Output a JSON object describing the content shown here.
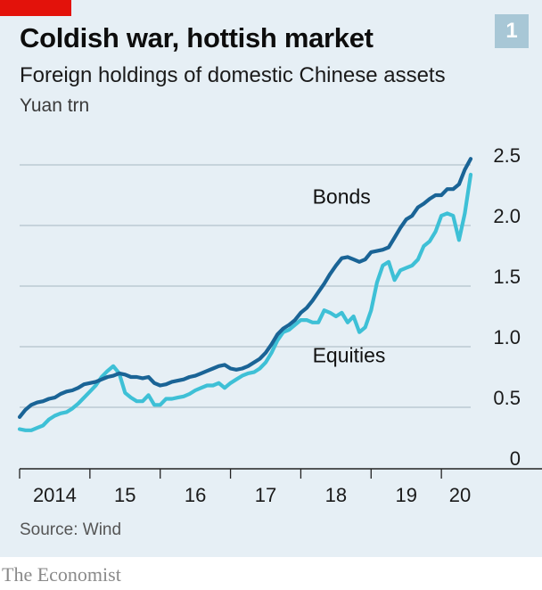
{
  "header": {
    "title": "Coldish war, hottish market",
    "badge": "1",
    "subtitle": "Foreign holdings of domestic Chinese assets",
    "unit": "Yuan trn"
  },
  "footer": {
    "source": "Source: Wind",
    "brand": "The Economist"
  },
  "colors": {
    "bonds": "#1a6496",
    "equities": "#3ec0d6",
    "accent": "#e3120b",
    "background": "#e6eff5"
  },
  "chart_data": {
    "type": "line",
    "title": "Coldish war, hottish market",
    "subtitle": "Foreign holdings of domestic Chinese assets",
    "ylabel": "Yuan trn",
    "ylim": [
      0,
      2.5
    ],
    "yticks": [
      0,
      0.5,
      1.0,
      1.5,
      2.0,
      2.5
    ],
    "ytick_labels": [
      "0",
      "0.5",
      "1.0",
      "1.5",
      "2.0",
      "2.5"
    ],
    "xlim": [
      "2014-01",
      "2020-06"
    ],
    "x_tick_labels": [
      "2014",
      "15",
      "16",
      "17",
      "18",
      "19",
      "20"
    ],
    "grid": true,
    "x": [
      "2014-01",
      "2014-02",
      "2014-03",
      "2014-04",
      "2014-05",
      "2014-06",
      "2014-07",
      "2014-08",
      "2014-09",
      "2014-10",
      "2014-11",
      "2014-12",
      "2015-01",
      "2015-02",
      "2015-03",
      "2015-04",
      "2015-05",
      "2015-06",
      "2015-07",
      "2015-08",
      "2015-09",
      "2015-10",
      "2015-11",
      "2015-12",
      "2016-01",
      "2016-02",
      "2016-03",
      "2016-04",
      "2016-05",
      "2016-06",
      "2016-07",
      "2016-08",
      "2016-09",
      "2016-10",
      "2016-11",
      "2016-12",
      "2017-01",
      "2017-02",
      "2017-03",
      "2017-04",
      "2017-05",
      "2017-06",
      "2017-07",
      "2017-08",
      "2017-09",
      "2017-10",
      "2017-11",
      "2017-12",
      "2018-01",
      "2018-02",
      "2018-03",
      "2018-04",
      "2018-05",
      "2018-06",
      "2018-07",
      "2018-08",
      "2018-09",
      "2018-10",
      "2018-11",
      "2018-12",
      "2019-01",
      "2019-02",
      "2019-03",
      "2019-04",
      "2019-05",
      "2019-06",
      "2019-07",
      "2019-08",
      "2019-09",
      "2019-10",
      "2019-11",
      "2019-12",
      "2020-01",
      "2020-02",
      "2020-03",
      "2020-04",
      "2020-05",
      "2020-06"
    ],
    "series": [
      {
        "name": "Bonds",
        "values": [
          0.42,
          0.48,
          0.52,
          0.54,
          0.55,
          0.57,
          0.58,
          0.61,
          0.63,
          0.64,
          0.66,
          0.69,
          0.7,
          0.71,
          0.73,
          0.75,
          0.76,
          0.78,
          0.77,
          0.75,
          0.75,
          0.74,
          0.75,
          0.7,
          0.68,
          0.69,
          0.71,
          0.72,
          0.73,
          0.75,
          0.76,
          0.78,
          0.8,
          0.82,
          0.84,
          0.85,
          0.82,
          0.81,
          0.82,
          0.84,
          0.87,
          0.9,
          0.95,
          1.02,
          1.1,
          1.15,
          1.18,
          1.22,
          1.28,
          1.32,
          1.38,
          1.45,
          1.52,
          1.6,
          1.67,
          1.73,
          1.74,
          1.72,
          1.7,
          1.72,
          1.78,
          1.79,
          1.8,
          1.82,
          1.9,
          1.98,
          2.05,
          2.08,
          2.15,
          2.18,
          2.22,
          2.25,
          2.25,
          2.3,
          2.3,
          2.34,
          2.46,
          2.55
        ]
      },
      {
        "name": "Equities",
        "values": [
          0.32,
          0.31,
          0.31,
          0.33,
          0.35,
          0.4,
          0.43,
          0.45,
          0.46,
          0.49,
          0.53,
          0.58,
          0.63,
          0.68,
          0.75,
          0.8,
          0.84,
          0.78,
          0.62,
          0.58,
          0.55,
          0.55,
          0.6,
          0.52,
          0.52,
          0.57,
          0.57,
          0.58,
          0.59,
          0.61,
          0.64,
          0.66,
          0.68,
          0.68,
          0.7,
          0.66,
          0.7,
          0.73,
          0.76,
          0.78,
          0.79,
          0.82,
          0.87,
          0.95,
          1.05,
          1.12,
          1.14,
          1.18,
          1.22,
          1.22,
          1.2,
          1.2,
          1.3,
          1.28,
          1.25,
          1.28,
          1.2,
          1.25,
          1.12,
          1.16,
          1.3,
          1.53,
          1.67,
          1.7,
          1.55,
          1.63,
          1.65,
          1.67,
          1.72,
          1.83,
          1.87,
          1.95,
          2.08,
          2.1,
          2.08,
          1.88,
          2.1,
          2.42
        ]
      }
    ],
    "annotations": [
      {
        "text": "Bonds",
        "x": "2018-03",
        "y": 2.18
      },
      {
        "text": "Equities",
        "x": "2018-03",
        "y": 0.87
      }
    ]
  }
}
